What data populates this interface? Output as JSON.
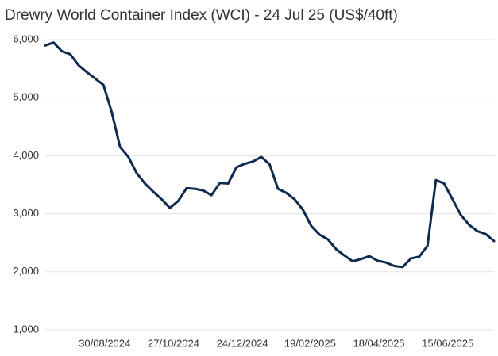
{
  "chart_data": {
    "type": "line",
    "title": "Drewry World Container Index (WCI) - 24 Jul 25 (US$/40ft)",
    "x": [
      "2024-07-11",
      "2024-07-18",
      "2024-07-25",
      "2024-08-01",
      "2024-08-08",
      "2024-08-15",
      "2024-08-22",
      "2024-08-29",
      "2024-09-05",
      "2024-09-12",
      "2024-09-19",
      "2024-09-26",
      "2024-10-03",
      "2024-10-10",
      "2024-10-17",
      "2024-10-24",
      "2024-10-31",
      "2024-11-07",
      "2024-11-14",
      "2024-11-21",
      "2024-11-28",
      "2024-12-05",
      "2024-12-12",
      "2024-12-19",
      "2024-12-26",
      "2025-01-02",
      "2025-01-09",
      "2025-01-16",
      "2025-01-23",
      "2025-01-30",
      "2025-02-06",
      "2025-02-13",
      "2025-02-20",
      "2025-02-27",
      "2025-03-06",
      "2025-03-13",
      "2025-03-20",
      "2025-03-27",
      "2025-04-03",
      "2025-04-10",
      "2025-04-17",
      "2025-04-24",
      "2025-05-01",
      "2025-05-08",
      "2025-05-15",
      "2025-05-22",
      "2025-05-29",
      "2025-06-05",
      "2025-06-12",
      "2025-06-19",
      "2025-06-26",
      "2025-07-03",
      "2025-07-10",
      "2025-07-17",
      "2025-07-24"
    ],
    "series": [
      {
        "name": "WCI",
        "color": "#0d2a4f",
        "values": [
          5900,
          5950,
          5800,
          5750,
          5560,
          5440,
          5330,
          5220,
          4750,
          4150,
          3980,
          3700,
          3520,
          3380,
          3250,
          3100,
          3220,
          3440,
          3430,
          3400,
          3320,
          3530,
          3520,
          3800,
          3860,
          3900,
          3980,
          3850,
          3430,
          3360,
          3250,
          3070,
          2790,
          2640,
          2560,
          2390,
          2280,
          2180,
          2220,
          2270,
          2190,
          2160,
          2100,
          2080,
          2230,
          2260,
          2450,
          3580,
          3520,
          3250,
          2980,
          2810,
          2700,
          2650,
          2530
        ]
      }
    ],
    "xlim": [
      "2024-07-11",
      "2025-07-24"
    ],
    "xticks": [
      {
        "value": "2024-08-30",
        "label": "30/08/2024"
      },
      {
        "value": "2024-10-27",
        "label": "27/10/2024"
      },
      {
        "value": "2024-12-24",
        "label": "24/12/2024"
      },
      {
        "value": "2025-02-19",
        "label": "19/02/2025"
      },
      {
        "value": "2025-04-18",
        "label": "18/04/2025"
      },
      {
        "value": "2025-06-15",
        "label": "15/06/2025"
      }
    ],
    "ylim": [
      1000,
      6000
    ],
    "yticks": [
      {
        "value": 1000,
        "label": "1,000"
      },
      {
        "value": 2000,
        "label": "2,000"
      },
      {
        "value": 3000,
        "label": "3,000"
      },
      {
        "value": 4000,
        "label": "4,000"
      },
      {
        "value": 5000,
        "label": "5,000"
      },
      {
        "value": 6000,
        "label": "6,000"
      }
    ],
    "grid": true
  }
}
